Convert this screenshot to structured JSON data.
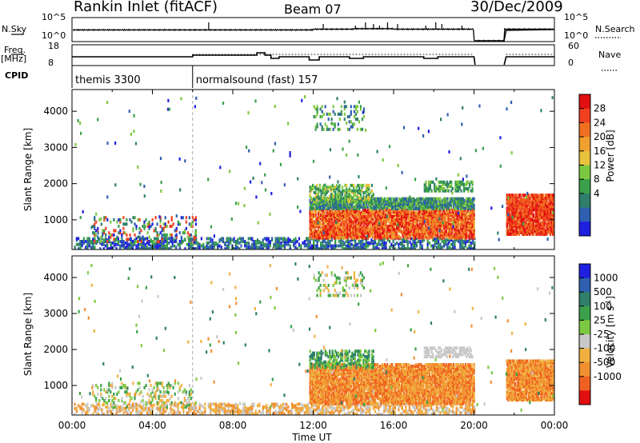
{
  "header": {
    "station": "Rankin Inlet (fitACF)",
    "beam": "Beam 07",
    "date": "30/Dec/2009"
  },
  "aux": {
    "nsky_label": "N.Sky",
    "nsky_ticks": [
      "10^5",
      "10^0"
    ],
    "freq_label": "Freq.",
    "freq_unit": "[MHz]",
    "freq_ticks": [
      "18",
      "8"
    ],
    "cpid_label": "CPID",
    "nsearch_label": "N.Search",
    "nsearch_ticks": [
      "10^5",
      "10^0"
    ],
    "nave_label": "Nave",
    "nave_ticks": [
      "60",
      "0"
    ],
    "cpid_modes": [
      {
        "start": 0,
        "label": "themis 3300"
      },
      {
        "start": 6,
        "label": "normalsound (fast) 157"
      }
    ]
  },
  "colors": {
    "power": [
      "#1f1fe0",
      "#2e5fb0",
      "#2f7f6a",
      "#3aa04a",
      "#7cc840",
      "#e8c23a",
      "#f0a030",
      "#f07020",
      "#f04020",
      "#e01010"
    ],
    "velocity": [
      "#1f1fe0",
      "#2e5fb0",
      "#2f7f6a",
      "#3aa04a",
      "#7cc840",
      "#c8c8c8",
      "#f0b040",
      "#f09030",
      "#f06020",
      "#e01010"
    ]
  },
  "chart_data": [
    {
      "type": "heatmap",
      "panel": "power",
      "xlabel": "",
      "ylabel": "Slant Range [km]",
      "xlim": [
        0,
        24
      ],
      "ylim": [
        180,
        4600
      ],
      "yticks": [
        1000,
        2000,
        3000,
        4000
      ],
      "colorbar_label": "Power [dB]",
      "colorbar_ticks": [
        "4",
        "8",
        "12",
        "16",
        "20",
        "24",
        "28"
      ]
    },
    {
      "type": "heatmap",
      "panel": "velocity",
      "xlabel": "Time UT",
      "ylabel": "Slant Range [km]",
      "xlim": [
        0,
        24
      ],
      "ylim": [
        180,
        4600
      ],
      "yticks": [
        1000,
        2000,
        3000,
        4000
      ],
      "xticks": [
        "00:00",
        "04:00",
        "08:00",
        "12:00",
        "16:00",
        "20:00",
        "00:00"
      ],
      "colorbar_label": "Velocity [m s-1]",
      "colorbar_ticks": [
        "1000",
        "500",
        "100",
        "25",
        "-25",
        "-100",
        "-500",
        "-1000"
      ]
    }
  ]
}
